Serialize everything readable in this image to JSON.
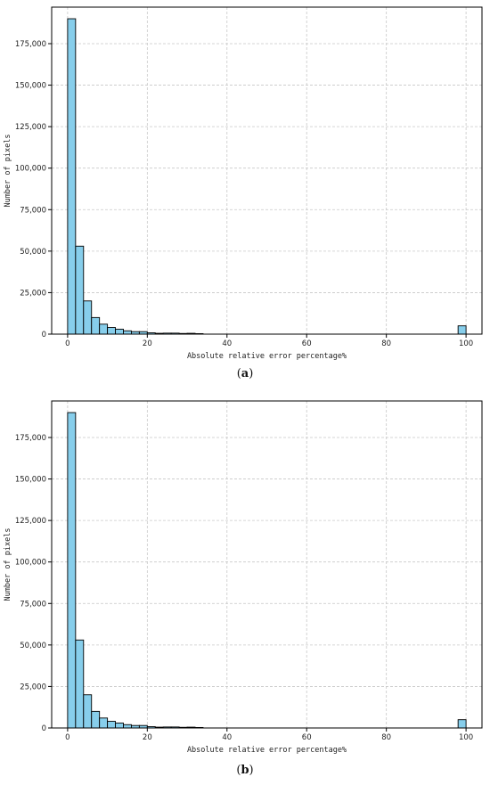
{
  "chart_data": [
    {
      "type": "bar",
      "panel_label": "a",
      "xlabel": "Absolute relative error percentage%",
      "ylabel": "Number of pixels",
      "xlim": [
        -4,
        104
      ],
      "ylim": [
        0,
        197000
      ],
      "xticks": [
        0,
        20,
        40,
        60,
        80,
        100
      ],
      "yticks": [
        0,
        25000,
        50000,
        75000,
        100000,
        125000,
        150000,
        175000
      ],
      "ytick_labels": [
        "0",
        "25,000",
        "50,000",
        "75,000",
        "100,000",
        "125,000",
        "150,000",
        "175,000"
      ],
      "grid": true,
      "bar_color": "#87CEEB",
      "edge_color": "#000000",
      "bin_width": 2,
      "bins": [
        {
          "x": 0,
          "value": 190000
        },
        {
          "x": 2,
          "value": 53000
        },
        {
          "x": 4,
          "value": 20000
        },
        {
          "x": 6,
          "value": 10000
        },
        {
          "x": 8,
          "value": 6000
        },
        {
          "x": 10,
          "value": 4000
        },
        {
          "x": 12,
          "value": 3000
        },
        {
          "x": 14,
          "value": 2000
        },
        {
          "x": 16,
          "value": 1500
        },
        {
          "x": 18,
          "value": 1500
        },
        {
          "x": 20,
          "value": 800
        },
        {
          "x": 22,
          "value": 500
        },
        {
          "x": 24,
          "value": 600
        },
        {
          "x": 26,
          "value": 600
        },
        {
          "x": 28,
          "value": 400
        },
        {
          "x": 30,
          "value": 500
        },
        {
          "x": 32,
          "value": 300
        },
        {
          "x": 98,
          "value": 5000
        }
      ]
    },
    {
      "type": "bar",
      "panel_label": "b",
      "xlabel": "Absolute relative error percentage%",
      "ylabel": "Number of pixels",
      "xlim": [
        -4,
        104
      ],
      "ylim": [
        0,
        197000
      ],
      "xticks": [
        0,
        20,
        40,
        60,
        80,
        100
      ],
      "yticks": [
        0,
        25000,
        50000,
        75000,
        100000,
        125000,
        150000,
        175000
      ],
      "ytick_labels": [
        "0",
        "25,000",
        "50,000",
        "75,000",
        "100,000",
        "125,000",
        "150,000",
        "175,000"
      ],
      "grid": true,
      "bar_color": "#87CEEB",
      "edge_color": "#000000",
      "bin_width": 2,
      "bins": [
        {
          "x": 0,
          "value": 190000
        },
        {
          "x": 2,
          "value": 53000
        },
        {
          "x": 4,
          "value": 20000
        },
        {
          "x": 6,
          "value": 10000
        },
        {
          "x": 8,
          "value": 6000
        },
        {
          "x": 10,
          "value": 4000
        },
        {
          "x": 12,
          "value": 3000
        },
        {
          "x": 14,
          "value": 2000
        },
        {
          "x": 16,
          "value": 1500
        },
        {
          "x": 18,
          "value": 1500
        },
        {
          "x": 20,
          "value": 800
        },
        {
          "x": 22,
          "value": 500
        },
        {
          "x": 24,
          "value": 600
        },
        {
          "x": 26,
          "value": 600
        },
        {
          "x": 28,
          "value": 400
        },
        {
          "x": 30,
          "value": 500
        },
        {
          "x": 32,
          "value": 300
        },
        {
          "x": 98,
          "value": 5000
        }
      ]
    }
  ],
  "captions": {
    "a": {
      "open": "(",
      "letter": "a",
      "close": ")"
    },
    "b": {
      "open": "(",
      "letter": "b",
      "close": ")"
    }
  }
}
